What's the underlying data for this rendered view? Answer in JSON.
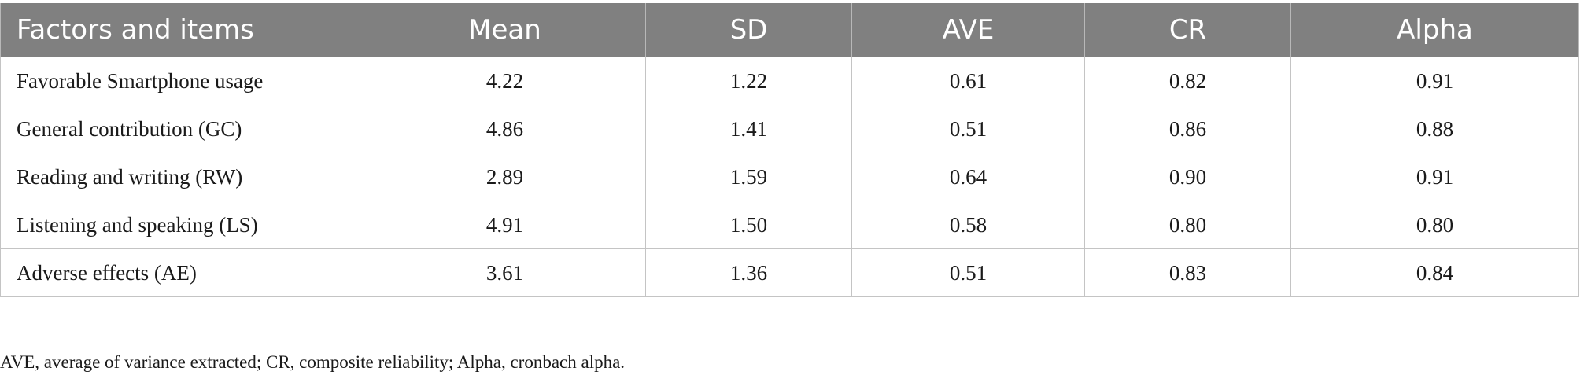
{
  "table": {
    "columns": [
      "Factors and items",
      "Mean",
      "SD",
      "AVE",
      "CR",
      "Alpha"
    ],
    "rows": [
      [
        "Favorable Smartphone usage",
        "4.22",
        "1.22",
        "0.61",
        "0.82",
        "0.91"
      ],
      [
        "General contribution (GC)",
        "4.86",
        "1.41",
        "0.51",
        "0.86",
        "0.88"
      ],
      [
        "Reading and writing (RW)",
        "2.89",
        "1.59",
        "0.64",
        "0.90",
        "0.91"
      ],
      [
        "Listening and speaking (LS)",
        "4.91",
        "1.50",
        "0.58",
        "0.80",
        "0.80"
      ],
      [
        "Adverse effects (AE)",
        "3.61",
        "1.36",
        "0.51",
        "0.83",
        "0.84"
      ]
    ],
    "header_bg": "#808080",
    "header_text_color": "#ffffff"
  },
  "footnote": "AVE, average of variance extracted; CR, composite reliability; Alpha, cronbach alpha."
}
